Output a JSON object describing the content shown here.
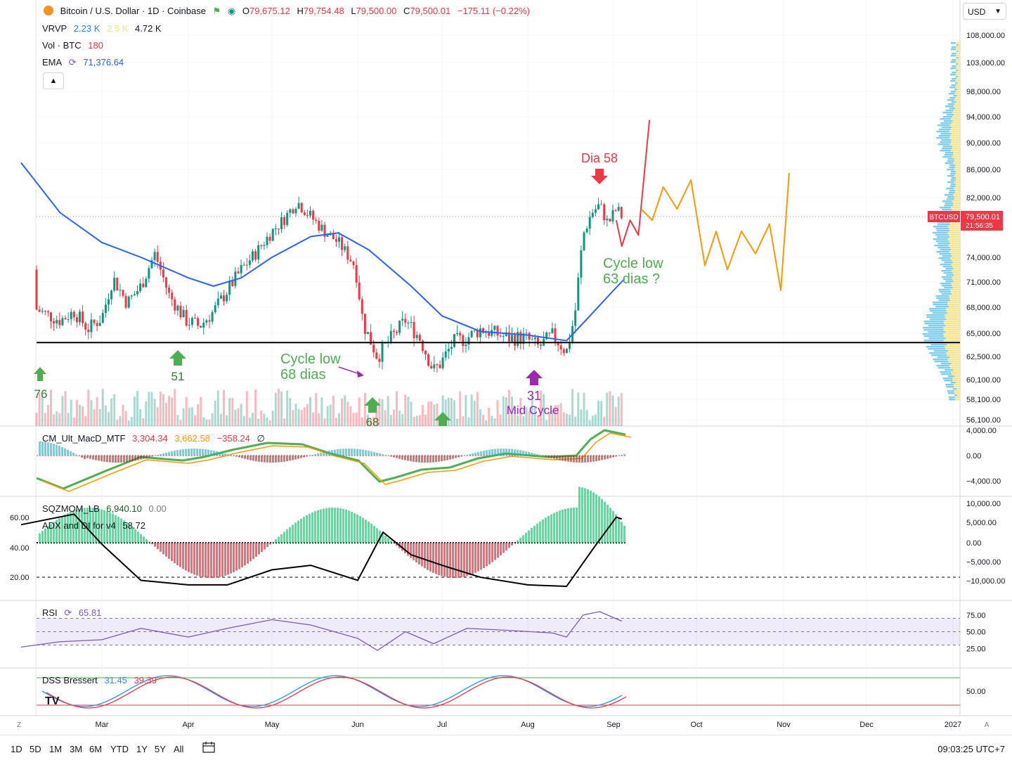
{
  "header": {
    "symbol_title": "Bitcoin / U.S. Dollar · 1D · Coinbase",
    "open_label": "O",
    "open": "79,675.12",
    "high_label": "H",
    "high": "79,754.48",
    "low_label": "L",
    "low": "79,500.00",
    "close_label": "C",
    "close": "79,500.01",
    "change": "−175.11 (−0.22%)",
    "currency": "USD"
  },
  "indicators": {
    "vrvp_name": "VRVP",
    "vrvp_v1": "2.23 K",
    "vrvp_v2": "2.5 K",
    "vrvp_v3": "4.72 K",
    "vol_name": "Vol · BTC",
    "vol_value": "180",
    "ema_name": "EMA",
    "ema_value": "71,376.64",
    "macd_name": "CM_Ult_MacD_MTF",
    "macd_v1": "3,304.34",
    "macd_v2": "3,662.58",
    "macd_v3": "−358.24",
    "macd_sym": "∅",
    "sqz_name": "SQZMOM_LB",
    "sqz_v1": "6,940.10",
    "sqz_v2": "0.00",
    "adx_name": "ADX and DI for v4",
    "adx_value": "58.72",
    "rsi_name": "RSI",
    "rsi_value": "65.81",
    "dss_name": "DSS Bressert",
    "dss_v1": "31.45",
    "dss_v2": "39.39"
  },
  "price_axis": [
    "108,000.00",
    "103,000.00",
    "98,000.00",
    "94,000.00",
    "90,000.00",
    "86,000.00",
    "82,000.00",
    "74,000.00",
    "71,000.00",
    "68,000.00",
    "65,000.00",
    "62,500.00",
    "60,100.00",
    "58,100.00",
    "56,100.00"
  ],
  "price_badge": {
    "symbol": "BTCUSD",
    "price": "79,500.01",
    "countdown": "21:56:35"
  },
  "macd_axis": [
    "4,000.00",
    "0.00",
    "−4,000.00"
  ],
  "sqz_axis_right": [
    "10,000.00",
    "5,000.00",
    "0.00",
    "−5,000.00",
    "−10,000.00"
  ],
  "adx_axis_left": [
    "60.00",
    "40.00",
    "20.00"
  ],
  "rsi_axis": [
    "75.00",
    "50.00",
    "25.00"
  ],
  "dss_axis": [
    "50.00"
  ],
  "time_axis": [
    "Mar",
    "Apr",
    "May",
    "Jun",
    "Jul",
    "Aug",
    "Sep",
    "Oct",
    "Nov",
    "Dec",
    "2027"
  ],
  "time_axis_extra": {
    "left": "Z",
    "right": "A"
  },
  "annotations": {
    "dia58": "Dia 58",
    "cycle63_l1": "Cycle low",
    "cycle63_l2": "63 dias ?",
    "cycle68_l1": "Cycle low",
    "cycle68_l2": "68 dias",
    "mid_num": "31",
    "mid_text": "Mid Cycle",
    "n51": "51",
    "n68": "68",
    "n76": "76"
  },
  "bottom": {
    "ranges": [
      "1D",
      "5D",
      "1M",
      "3M",
      "6M",
      "YTD",
      "1Y",
      "5Y",
      "All"
    ],
    "clock": "09:03:25 UTC+7"
  },
  "colors": {
    "up": "#089981",
    "down": "#f23645",
    "ema": "#2962ff",
    "rsi": "#7e57c2",
    "projection_red": "#f23645",
    "projection_orange": "#ff9800",
    "annotation_green": "#4caf50",
    "annotation_purple": "#9c27b0"
  },
  "chart_data": {
    "type": "line",
    "x_type": "date",
    "x_ticks": [
      "Mar",
      "Apr",
      "May",
      "Jun",
      "Jul",
      "Aug",
      "Sep",
      "Oct",
      "Nov",
      "Dec",
      "2027"
    ],
    "price_range": [
      55500,
      110000
    ],
    "support_level": 64000,
    "last_close": 79500.01,
    "close_series": [
      {
        "x": "Feb 01",
        "y": 72500
      },
      {
        "x": "Feb 05",
        "y": 68000
      },
      {
        "x": "Feb 10",
        "y": 67200
      },
      {
        "x": "Feb 15",
        "y": 66500
      },
      {
        "x": "Feb 20",
        "y": 67500
      },
      {
        "x": "Feb 25",
        "y": 65500
      },
      {
        "x": "Mar 01",
        "y": 66800
      },
      {
        "x": "Mar 05",
        "y": 71500
      },
      {
        "x": "Mar 10",
        "y": 68500
      },
      {
        "x": "Mar 15",
        "y": 70500
      },
      {
        "x": "Mar 20",
        "y": 74500
      },
      {
        "x": "Mar 25",
        "y": 69500
      },
      {
        "x": "Mar 31",
        "y": 66500
      },
      {
        "x": "Apr 05",
        "y": 65800
      },
      {
        "x": "Apr 10",
        "y": 67500
      },
      {
        "x": "Apr 15",
        "y": 70000
      },
      {
        "x": "Apr 20",
        "y": 72500
      },
      {
        "x": "Apr 25",
        "y": 74500
      },
      {
        "x": "May 01",
        "y": 77500
      },
      {
        "x": "May 05",
        "y": 79000
      },
      {
        "x": "May 10",
        "y": 81500
      },
      {
        "x": "May 15",
        "y": 79500
      },
      {
        "x": "May 20",
        "y": 77500
      },
      {
        "x": "May 25",
        "y": 76000
      },
      {
        "x": "May 31",
        "y": 73000
      },
      {
        "x": "Jun 03",
        "y": 66000
      },
      {
        "x": "Jun 08",
        "y": 62500
      },
      {
        "x": "Jun 13",
        "y": 64500
      },
      {
        "x": "Jun 18",
        "y": 66500
      },
      {
        "x": "Jun 23",
        "y": 64500
      },
      {
        "x": "Jun 28",
        "y": 61000
      },
      {
        "x": "Jul 01",
        "y": 62000
      },
      {
        "x": "Jul 05",
        "y": 64000
      },
      {
        "x": "Jul 10",
        "y": 64500
      },
      {
        "x": "Jul 15",
        "y": 65500
      },
      {
        "x": "Jul 20",
        "y": 65000
      },
      {
        "x": "Jul 25",
        "y": 64500
      },
      {
        "x": "Jul 31",
        "y": 64500
      },
      {
        "x": "Aug 05",
        "y": 63500
      },
      {
        "x": "Aug 10",
        "y": 64800
      },
      {
        "x": "Aug 15",
        "y": 63000
      },
      {
        "x": "Aug 18",
        "y": 67000
      },
      {
        "x": "Aug 21",
        "y": 77000
      },
      {
        "x": "Aug 24",
        "y": 80000
      },
      {
        "x": "Aug 27",
        "y": 81000
      },
      {
        "x": "Aug 30",
        "y": 78500
      },
      {
        "x": "Sep 02",
        "y": 80500
      },
      {
        "x": "Sep 04",
        "y": 79500
      }
    ],
    "ema_series": [
      {
        "x": "Feb 01",
        "y": 87000
      },
      {
        "x": "Feb 15",
        "y": 80000
      },
      {
        "x": "Mar 01",
        "y": 76000
      },
      {
        "x": "Mar 15",
        "y": 74000
      },
      {
        "x": "Apr 01",
        "y": 71500
      },
      {
        "x": "Apr 10",
        "y": 70500
      },
      {
        "x": "Apr 20",
        "y": 71500
      },
      {
        "x": "May 01",
        "y": 74000
      },
      {
        "x": "May 15",
        "y": 76800
      },
      {
        "x": "May 25",
        "y": 77300
      },
      {
        "x": "Jun 05",
        "y": 75000
      },
      {
        "x": "Jun 20",
        "y": 70500
      },
      {
        "x": "Jul 01",
        "y": 67000
      },
      {
        "x": "Jul 15",
        "y": 65200
      },
      {
        "x": "Aug 01",
        "y": 64800
      },
      {
        "x": "Aug 15",
        "y": 64200
      },
      {
        "x": "Aug 22",
        "y": 66500
      },
      {
        "x": "Sep 01",
        "y": 70000
      },
      {
        "x": "Sep 05",
        "y": 71376.64
      }
    ],
    "projection_red": [
      {
        "x": "Sep 02",
        "y": 79000
      },
      {
        "x": "Sep 04",
        "y": 75500
      },
      {
        "x": "Sep 07",
        "y": 79000
      },
      {
        "x": "Sep 10",
        "y": 77000
      },
      {
        "x": "Sep 14",
        "y": 93500
      }
    ],
    "projection_orange": [
      {
        "x": "Sep 11",
        "y": 80500
      },
      {
        "x": "Sep 15",
        "y": 79000
      },
      {
        "x": "Sep 19",
        "y": 83500
      },
      {
        "x": "Sep 24",
        "y": 80500
      },
      {
        "x": "Sep 29",
        "y": 84500
      },
      {
        "x": "Oct 04",
        "y": 73000
      },
      {
        "x": "Oct 08",
        "y": 77500
      },
      {
        "x": "Oct 12",
        "y": 72500
      },
      {
        "x": "Oct 17",
        "y": 77500
      },
      {
        "x": "Oct 22",
        "y": 74500
      },
      {
        "x": "Oct 27",
        "y": 78500
      },
      {
        "x": "Oct 31",
        "y": 70000
      },
      {
        "x": "Nov 03",
        "y": 85500
      }
    ],
    "rsi_series": [
      {
        "x": "Feb 01",
        "y": 27
      },
      {
        "x": "Feb 15",
        "y": 35
      },
      {
        "x": "Mar 01",
        "y": 38
      },
      {
        "x": "Mar 15",
        "y": 55
      },
      {
        "x": "Apr 01",
        "y": 42
      },
      {
        "x": "Apr 15",
        "y": 55
      },
      {
        "x": "May 01",
        "y": 68
      },
      {
        "x": "May 15",
        "y": 60
      },
      {
        "x": "Jun 01",
        "y": 40
      },
      {
        "x": "Jun 08",
        "y": 22
      },
      {
        "x": "Jun 18",
        "y": 50
      },
      {
        "x": "Jun 28",
        "y": 32
      },
      {
        "x": "Jul 10",
        "y": 55
      },
      {
        "x": "Jul 25",
        "y": 52
      },
      {
        "x": "Aug 10",
        "y": 48
      },
      {
        "x": "Aug 15",
        "y": 42
      },
      {
        "x": "Aug 21",
        "y": 75
      },
      {
        "x": "Aug 27",
        "y": 80
      },
      {
        "x": "Sep 04",
        "y": 65.81
      }
    ],
    "rsi_range": [
      0,
      100
    ],
    "adx_series": [
      {
        "x": "Feb 01",
        "y": 55
      },
      {
        "x": "Feb 20",
        "y": 62
      },
      {
        "x": "Mar 01",
        "y": 42
      },
      {
        "x": "Mar 15",
        "y": 18
      },
      {
        "x": "Apr 01",
        "y": 15
      },
      {
        "x": "Apr 15",
        "y": 15
      },
      {
        "x": "May 01",
        "y": 25
      },
      {
        "x": "May 15",
        "y": 28
      },
      {
        "x": "Jun 01",
        "y": 18
      },
      {
        "x": "Jun 10",
        "y": 50
      },
      {
        "x": "Jun 20",
        "y": 35
      },
      {
        "x": "Jul 01",
        "y": 28
      },
      {
        "x": "Jul 15",
        "y": 20
      },
      {
        "x": "Aug 01",
        "y": 15
      },
      {
        "x": "Aug 15",
        "y": 14
      },
      {
        "x": "Aug 25",
        "y": 40
      },
      {
        "x": "Sep 02",
        "y": 60
      },
      {
        "x": "Sep 04",
        "y": 58.72
      }
    ],
    "ylabel": "",
    "xlabel": ""
  }
}
